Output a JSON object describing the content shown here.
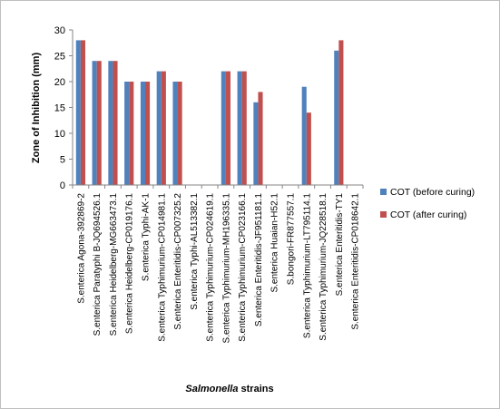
{
  "chart_data": {
    "type": "bar",
    "ylabel": "Zone of Inhibition (mm)",
    "xlabel_italic": "Salmonella",
    "xlabel_rest": " strains",
    "ylim": [
      0,
      30
    ],
    "yticks": [
      0,
      5,
      10,
      15,
      20,
      25,
      30
    ],
    "grid": false,
    "legend_position": "right",
    "categories": [
      "S.enterica Agona-392869-2",
      "S.enterica Paratyphi B-JQ694526.1",
      "S.enterica Heidelberg-MG663473.1",
      "S.enterica Heidelberg-CP019176.1",
      "S.enterica Typhi-AK-1",
      "S.enterica Typhimurium-CP014981.1",
      "S.enterica Enteritidis-CP007325.2",
      "S.enterica Typhi-AL513382.1",
      "S.enterica Typhimurium-CP024619.1",
      "S.enterica Typhimurium-MH196335.1",
      "S.enterica Typhimurium-CP023166.1",
      "S.enterica Enteritidis-JF951181.1",
      "S.enterica Huaian-H52.1",
      "S.bongori-FR877557.1",
      "S.enterica Typhimurium-LT795114.1",
      "S.enterica Typhimurium-JQ228518.1",
      "S.enterica Enteritidis-TY1",
      "S.enterica Enteritidis-CP018642.1"
    ],
    "series": [
      {
        "name": "COT (before curing)",
        "color": "#4f81bd",
        "values": [
          28,
          24,
          24,
          20,
          20,
          22,
          20,
          0,
          0,
          22,
          22,
          16,
          0,
          0,
          19,
          0,
          26,
          0
        ]
      },
      {
        "name": "COT (after curing)",
        "color": "#c0504d",
        "values": [
          28,
          24,
          24,
          20,
          20,
          22,
          20,
          0,
          0,
          22,
          22,
          18,
          0,
          0,
          14,
          0,
          28,
          0
        ]
      }
    ]
  }
}
